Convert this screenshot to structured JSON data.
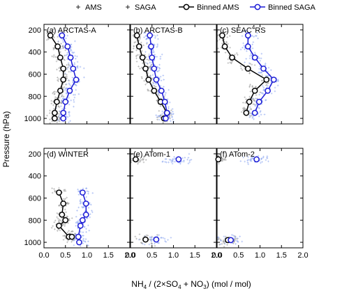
{
  "legend": {
    "items": [
      {
        "label": "AMS",
        "kind": "scatter",
        "color": "#9a9a9a"
      },
      {
        "label": "SAGA",
        "kind": "scatter",
        "color": "#8fa8f0"
      },
      {
        "label": "Binned AMS",
        "kind": "line",
        "color": "#000000"
      },
      {
        "label": "Binned SAGA",
        "kind": "line",
        "color": "#1a1ad6"
      }
    ]
  },
  "axes": {
    "ylabel": "Pressure (hPa)",
    "xlabel_parts": [
      "NH",
      "4",
      " / (2×SO",
      "4",
      " + NO",
      "3",
      ") (mol / mol)"
    ],
    "xticks": [
      "0.0",
      "0.5",
      "1.0",
      "1.5",
      "2.0"
    ],
    "yticks": [
      "200",
      "400",
      "600",
      "800",
      "1000"
    ]
  },
  "chart_data": [
    {
      "type": "scatter",
      "title": "(a) ARCTAS-A",
      "xlim": [
        0,
        2.0
      ],
      "ylim": [
        1050,
        150
      ],
      "y_inverted": true,
      "series": [
        {
          "name": "Binned AMS",
          "x": [
            0.15,
            0.32,
            0.38,
            0.45,
            0.45,
            0.38,
            0.3,
            0.25,
            0.25
          ],
          "y": [
            250,
            350,
            450,
            550,
            650,
            750,
            850,
            950,
            1000
          ]
        },
        {
          "name": "Binned SAGA",
          "x": [
            0.42,
            0.55,
            0.62,
            0.68,
            0.75,
            0.6,
            0.5,
            0.45,
            0.45
          ],
          "y": [
            250,
            350,
            450,
            550,
            650,
            750,
            850,
            950,
            1000
          ]
        }
      ]
    },
    {
      "type": "scatter",
      "title": "(b) ARCTAS-B",
      "xlim": [
        0,
        2.0
      ],
      "ylim": [
        1050,
        150
      ],
      "y_inverted": true,
      "series": [
        {
          "name": "Binned AMS",
          "x": [
            0.15,
            0.2,
            0.28,
            0.35,
            0.42,
            0.55,
            0.7,
            0.85,
            0.78
          ],
          "y": [
            250,
            350,
            450,
            550,
            650,
            750,
            850,
            950,
            1000
          ]
        },
        {
          "name": "Binned SAGA",
          "x": [
            0.45,
            0.48,
            0.5,
            0.55,
            0.6,
            0.72,
            0.8,
            0.85,
            0.82
          ],
          "y": [
            250,
            350,
            450,
            550,
            650,
            750,
            850,
            950,
            1000
          ]
        }
      ]
    },
    {
      "type": "scatter",
      "title": "(c) SEAC4RS",
      "title_parts": [
        "(c) SEAC",
        "4",
        "RS"
      ],
      "xlim": [
        0,
        2.0
      ],
      "ylim": [
        1050,
        150
      ],
      "y_inverted": true,
      "series": [
        {
          "name": "Binned AMS",
          "x": [
            0.12,
            0.18,
            0.35,
            0.72,
            1.15,
            0.88,
            0.75,
            0.68
          ],
          "y": [
            250,
            350,
            450,
            550,
            650,
            750,
            850,
            950
          ]
        },
        {
          "name": "Binned SAGA",
          "x": [
            0.72,
            0.72,
            0.88,
            1.08,
            1.32,
            1.18,
            0.98,
            0.88
          ],
          "y": [
            250,
            350,
            450,
            550,
            650,
            750,
            850,
            950
          ]
        }
      ]
    },
    {
      "type": "scatter",
      "title": "(d) WINTER",
      "xlim": [
        0,
        2.0
      ],
      "ylim": [
        1050,
        150
      ],
      "y_inverted": true,
      "series": [
        {
          "name": "Binned AMS",
          "x": [
            0.35,
            0.45,
            0.42,
            0.5,
            0.35,
            0.58,
            0.65
          ],
          "y": [
            550,
            650,
            750,
            800,
            850,
            950,
            950
          ]
        },
        {
          "name": "Binned SAGA",
          "x": [
            0.9,
            0.98,
            0.98,
            0.9,
            0.85,
            0.8,
            0.82
          ],
          "y": [
            550,
            650,
            750,
            800,
            850,
            950,
            1000
          ]
        }
      ]
    },
    {
      "type": "scatter",
      "title": "(e) ATom-1",
      "xlim": [
        0,
        2.0
      ],
      "ylim": [
        1050,
        150
      ],
      "y_inverted": true,
      "series": [
        {
          "name": "Binned AMS",
          "x": [
            0.12,
            0.35
          ],
          "y": [
            250,
            975
          ]
        },
        {
          "name": "Binned SAGA",
          "x": [
            1.12,
            0.6
          ],
          "y": [
            250,
            975
          ]
        }
      ]
    },
    {
      "type": "scatter",
      "title": "(f) ATom-2",
      "xlim": [
        0,
        2.0
      ],
      "ylim": [
        1050,
        150
      ],
      "y_inverted": true,
      "series": [
        {
          "name": "Binned AMS",
          "x": [
            0.03,
            0.25
          ],
          "y": [
            250,
            980
          ]
        },
        {
          "name": "Binned SAGA",
          "x": [
            0.92,
            0.32
          ],
          "y": [
            250,
            980
          ]
        }
      ]
    }
  ]
}
